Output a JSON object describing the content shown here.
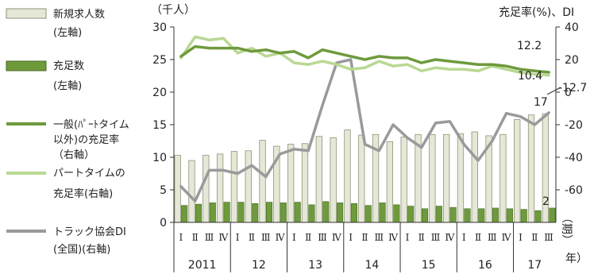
{
  "chart_data": {
    "type": "bar+line",
    "left_axis": {
      "label": "（千人）",
      "ylim": [
        0,
        30
      ],
      "ticks": [
        0,
        5,
        10,
        15,
        20,
        25,
        30
      ]
    },
    "right_axis": {
      "label": "充足率(%)、DI",
      "ylim": [
        -80,
        40
      ],
      "ticks": [
        -60,
        -40,
        -20,
        0,
        20,
        40
      ]
    },
    "x_axis": {
      "unit_label": "（期）",
      "unit_label_2": "年）",
      "quarters": [
        "Ⅰ",
        "Ⅱ",
        "Ⅲ",
        "Ⅳ"
      ],
      "years": [
        "2011",
        "12",
        "13",
        "14",
        "15",
        "16",
        "17"
      ]
    },
    "legend": [
      {
        "label": "新規求人数",
        "sublabel": "(左軸)",
        "type": "bar",
        "color": "#e5e8d6"
      },
      {
        "label": "充足数",
        "sublabel": "(左軸)",
        "type": "bar",
        "color": "#6e9a3c"
      },
      {
        "label": "一般(ﾊﾟｰﾄタイム",
        "sublabel": "以外)の充足率",
        "sublabel2": "（右軸）",
        "type": "line",
        "color": "#6e9a3c"
      },
      {
        "label": "パートタイムの",
        "sublabel": "充足率(右軸)",
        "type": "line",
        "color": "#b9d893"
      },
      {
        "label": "トラック協会DI",
        "sublabel": "(全国)(右軸)",
        "type": "line",
        "color": "#9a9a9a"
      }
    ],
    "series": [
      {
        "name": "新規求人数",
        "axis": "left",
        "type": "bar",
        "values": [
          10.3,
          9.5,
          10.3,
          10.5,
          10.9,
          11.0,
          12.6,
          11.7,
          12.0,
          12.1,
          13.2,
          13.0,
          14.2,
          13.4,
          13.5,
          12.4,
          13.1,
          13.5,
          13.5,
          13.5,
          13.6,
          13.9,
          13.3,
          13.5,
          15.8,
          16.5,
          16.7
        ]
      },
      {
        "name": "充足数",
        "axis": "left",
        "type": "bar",
        "values": [
          2.6,
          2.8,
          3.0,
          3.1,
          3.1,
          2.9,
          3.1,
          3.0,
          3.1,
          2.7,
          3.2,
          3.0,
          2.9,
          2.6,
          3.0,
          2.7,
          2.5,
          2.1,
          2.5,
          2.3,
          2.1,
          2.1,
          2.2,
          2.1,
          2.0,
          1.8,
          2.2
        ]
      },
      {
        "name": "一般(ﾊﾟｰﾄタイム以外)の充足率",
        "axis": "right",
        "type": "line",
        "values": [
          22,
          28,
          27,
          27,
          27,
          25,
          26,
          24,
          25,
          21,
          26,
          24,
          22,
          20,
          22,
          21,
          21,
          18,
          20,
          19,
          18,
          17,
          17,
          16,
          14,
          13,
          12.2
        ]
      },
      {
        "name": "パートタイムの充足率",
        "axis": "right",
        "type": "line",
        "values": [
          21,
          34,
          32,
          33,
          24,
          27,
          22,
          24,
          18,
          17,
          19,
          17,
          14,
          15,
          19,
          16,
          17,
          13,
          15,
          14,
          14,
          13,
          16,
          14,
          12,
          11,
          10.4
        ]
      },
      {
        "name": "トラック協会DI(全国)",
        "axis": "right",
        "type": "line",
        "values": [
          -58,
          -67,
          -48,
          -48,
          -50,
          -45,
          -52,
          -38,
          -35,
          -36,
          -8,
          18,
          20,
          -32,
          -36,
          -20,
          -28,
          -34,
          -19,
          -18,
          -32,
          -42,
          -30,
          -13,
          -15,
          -20,
          -12.7
        ]
      }
    ],
    "annotations": [
      {
        "text": "12.2",
        "series": "一般(ﾊﾟｰﾄタイム以外)の充足率"
      },
      {
        "text": "10.4",
        "series": "パートタイムの充足率"
      },
      {
        "text": "-12.7",
        "series": "トラック協会DI(全国)"
      },
      {
        "text": "17"
      },
      {
        "text": "2"
      }
    ],
    "colors": {
      "new_bar": "#e5e8d6",
      "new_bar_border": "#8e9278",
      "filled_bar": "#6e9a3c",
      "filled_bar_border": "#4a6a26",
      "general_line": "#6e9a3c",
      "part_line": "#b9d893",
      "di_line": "#9a9a9a"
    }
  }
}
